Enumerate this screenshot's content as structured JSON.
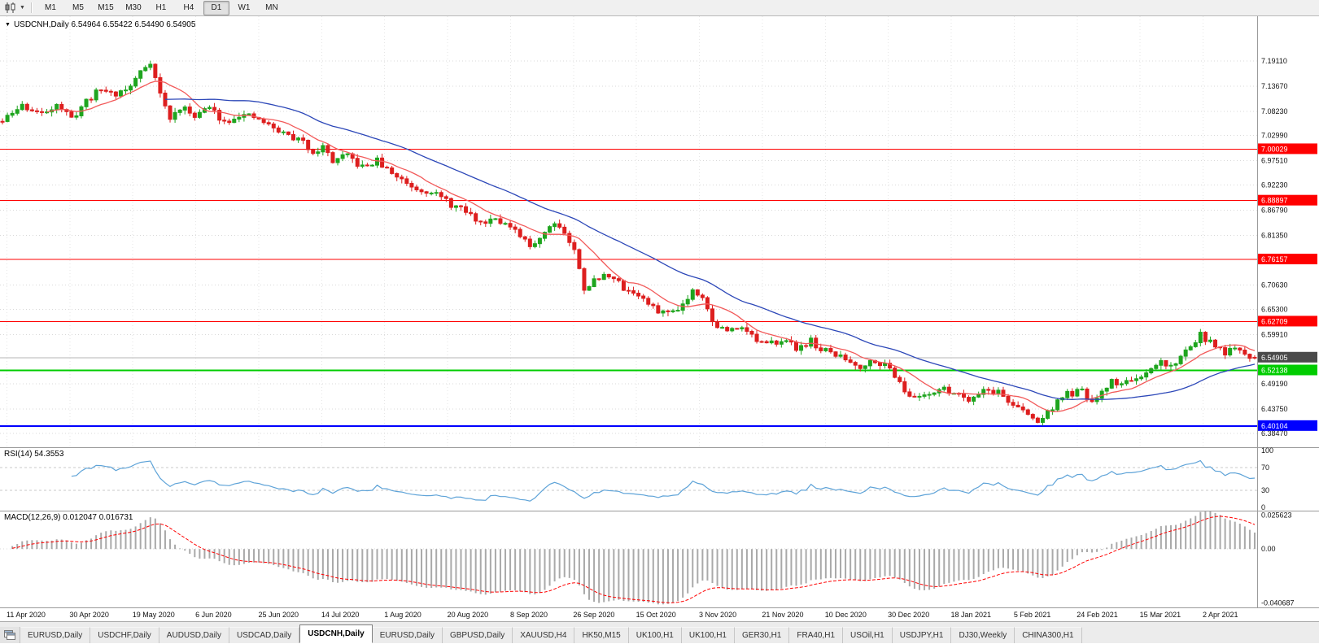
{
  "toolbar": {
    "periods": [
      "M1",
      "M5",
      "M15",
      "M30",
      "H1",
      "H4",
      "D1",
      "W1",
      "MN"
    ],
    "active_period": "D1"
  },
  "chart": {
    "title": "USDCNH,Daily 6.54964 6.55422 6.54490 6.54905"
  },
  "rsi": {
    "label": "RSI(14) 54.3553"
  },
  "macd": {
    "label": "MACD(12,26,9) 0.012047 0.016731"
  },
  "tabs": {
    "items": [
      "EURUSD,Daily",
      "USDCHF,Daily",
      "AUDUSD,Daily",
      "USDCAD,Daily",
      "USDCNH,Daily",
      "EURUSD,Daily",
      "GBPUSD,Daily",
      "XAUUSD,H4",
      "HK50,M15",
      "UK100,H1",
      "UK100,H1",
      "GER30,H1",
      "FRA40,H1",
      "USOil,H1",
      "USDJPY,H1",
      "DJ30,Weekly",
      "CHINA300,H1"
    ],
    "active_index": 4
  },
  "colors": {
    "up": "#1fa51f",
    "down": "#dd1f1f",
    "ma_fast": "#f25a5a",
    "ma_slow": "#2c47b8",
    "rsi_line": "#5ea3d8",
    "rsi_level": "#c8c8c8",
    "macd_hist": "#a9a9a9",
    "macd_signal": "#ff0000",
    "grid": "#d9d9d9",
    "vgrid": "#e6e6e6",
    "separator": "#9a9a9a",
    "axis_text": "#111111",
    "level_red": "#ff0000",
    "level_green": "#00cc00",
    "level_blue": "#0000ff",
    "current_line": "#b5b5b5",
    "current_tag": "#4a4a4a",
    "tag_text": "#ffffff",
    "date_text": "#111111"
  },
  "chart_data": [
    {
      "type": "candlestick",
      "title": "USDCNH,Daily",
      "symbol": "USDCNH",
      "timeframe": "Daily",
      "last_ohlc": {
        "open": 6.54964,
        "high": 6.55422,
        "low": 6.5449,
        "close": 6.54905
      },
      "current_price": 6.54905,
      "ylim": [
        6.355,
        7.288
      ],
      "y_ticks": [
        "7.19110",
        "7.13670",
        "7.08230",
        "7.02990",
        "6.97510",
        "6.92230",
        "6.86790",
        "6.81350",
        "6.70630",
        "6.65300",
        "6.59910",
        "6.49190",
        "6.43750",
        "6.38470"
      ],
      "x_ticks": [
        "11 Apr 2020",
        "30 Apr 2020",
        "19 May 2020",
        "6 Jun 2020",
        "25 Jun 2020",
        "14 Jul 2020",
        "1 Aug 2020",
        "20 Aug 2020",
        "8 Sep 2020",
        "26 Sep 2020",
        "15 Oct 2020",
        "3 Nov 2020",
        "21 Nov 2020",
        "10 Dec 2020",
        "30 Dec 2020",
        "18 Jan 2021",
        "5 Feb 2021",
        "24 Feb 2021",
        "15 Mar 2021",
        "2 Apr 2021"
      ],
      "horizontal_levels": [
        {
          "price": 7.00029,
          "label": "7.00029",
          "color_key": "level_red",
          "width": 1
        },
        {
          "price": 6.88897,
          "label": "6.88897",
          "color_key": "level_red",
          "width": 1
        },
        {
          "price": 6.76157,
          "label": "6.76157",
          "color_key": "level_red",
          "width": 1
        },
        {
          "price": 6.62709,
          "label": "6.62709",
          "color_key": "level_red",
          "width": 1
        },
        {
          "price": 6.52138,
          "label": "6.52138",
          "color_key": "level_green",
          "width": 2
        },
        {
          "price": 6.40104,
          "label": "6.40104",
          "color_key": "level_blue",
          "width": 2
        }
      ],
      "moving_averages": [
        {
          "period": 10,
          "color_key": "ma_fast"
        },
        {
          "period": 34,
          "color_key": "ma_slow"
        }
      ],
      "candle_count": 255,
      "noise_seed": 11,
      "trajectory": [
        [
          0,
          7.06
        ],
        [
          4,
          7.095
        ],
        [
          8,
          7.075
        ],
        [
          11,
          7.1
        ],
        [
          14,
          7.065
        ],
        [
          17,
          7.105
        ],
        [
          20,
          7.13
        ],
        [
          23,
          7.12
        ],
        [
          26,
          7.135
        ],
        [
          28,
          7.17
        ],
        [
          30,
          7.19
        ],
        [
          32,
          7.12
        ],
        [
          34,
          7.065
        ],
        [
          36,
          7.09
        ],
        [
          39,
          7.075
        ],
        [
          42,
          7.09
        ],
        [
          45,
          7.06
        ],
        [
          48,
          7.075
        ],
        [
          52,
          7.065
        ],
        [
          55,
          7.045
        ],
        [
          58,
          7.03
        ],
        [
          61,
          7.015
        ],
        [
          63,
          6.995
        ],
        [
          65,
          7.005
        ],
        [
          67,
          6.975
        ],
        [
          70,
          6.985
        ],
        [
          73,
          6.96
        ],
        [
          76,
          6.975
        ],
        [
          78,
          6.955
        ],
        [
          81,
          6.935
        ],
        [
          84,
          6.915
        ],
        [
          87,
          6.91
        ],
        [
          91,
          6.88
        ],
        [
          94,
          6.865
        ],
        [
          97,
          6.84
        ],
        [
          100,
          6.855
        ],
        [
          104,
          6.82
        ],
        [
          107,
          6.79
        ],
        [
          109,
          6.81
        ],
        [
          112,
          6.845
        ],
        [
          114,
          6.82
        ],
        [
          116,
          6.78
        ],
        [
          118,
          6.7
        ],
        [
          120,
          6.715
        ],
        [
          123,
          6.73
        ],
        [
          126,
          6.7
        ],
        [
          129,
          6.685
        ],
        [
          132,
          6.655
        ],
        [
          135,
          6.645
        ],
        [
          138,
          6.665
        ],
        [
          140,
          6.695
        ],
        [
          142,
          6.685
        ],
        [
          144,
          6.625
        ],
        [
          147,
          6.605
        ],
        [
          150,
          6.62
        ],
        [
          153,
          6.585
        ],
        [
          155,
          6.575
        ],
        [
          158,
          6.59
        ],
        [
          161,
          6.57
        ],
        [
          164,
          6.585
        ],
        [
          166,
          6.565
        ],
        [
          168,
          6.56
        ],
        [
          171,
          6.545
        ],
        [
          174,
          6.53
        ],
        [
          177,
          6.545
        ],
        [
          180,
          6.525
        ],
        [
          182,
          6.5
        ],
        [
          184,
          6.46
        ],
        [
          187,
          6.47
        ],
        [
          190,
          6.48
        ],
        [
          193,
          6.475
        ],
        [
          196,
          6.46
        ],
        [
          199,
          6.48
        ],
        [
          202,
          6.475
        ],
        [
          204,
          6.455
        ],
        [
          206,
          6.44
        ],
        [
          208,
          6.425
        ],
        [
          210,
          6.41
        ],
        [
          212,
          6.43
        ],
        [
          214,
          6.455
        ],
        [
          216,
          6.47
        ],
        [
          219,
          6.475
        ],
        [
          221,
          6.45
        ],
        [
          223,
          6.47
        ],
        [
          225,
          6.5
        ],
        [
          227,
          6.49
        ],
        [
          229,
          6.505
        ],
        [
          231,
          6.5
        ],
        [
          233,
          6.52
        ],
        [
          235,
          6.54
        ],
        [
          237,
          6.53
        ],
        [
          239,
          6.55
        ],
        [
          241,
          6.575
        ],
        [
          243,
          6.6
        ],
        [
          244,
          6.585
        ],
        [
          246,
          6.575
        ],
        [
          248,
          6.56
        ],
        [
          250,
          6.565
        ],
        [
          252,
          6.555
        ],
        [
          254,
          6.549
        ]
      ]
    },
    {
      "type": "line",
      "title": "RSI(14)",
      "last_value": 54.3553,
      "period": 14,
      "ylim": [
        0,
        100
      ],
      "y_ticks": [
        "100",
        "70",
        "30",
        "0"
      ],
      "level_lines": [
        70,
        30
      ]
    },
    {
      "type": "bar+line",
      "title": "MACD(12,26,9)",
      "params": {
        "fast": 12,
        "slow": 26,
        "signal": 9
      },
      "macd_last": 0.012047,
      "signal_last": 0.016731,
      "y_ticks": [
        "0.025623",
        "0.00",
        "-0.040687"
      ]
    }
  ]
}
